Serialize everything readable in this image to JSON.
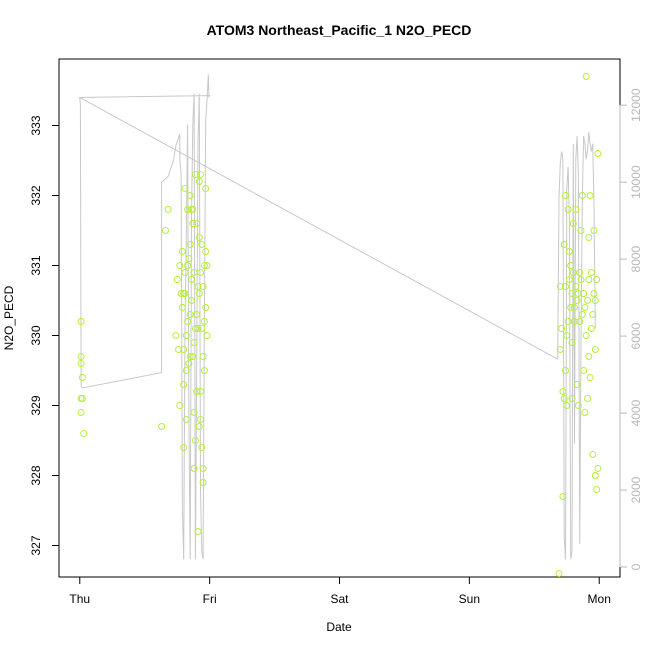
{
  "chart_data": {
    "type": "scatter",
    "title": "ATOM3 Northeast_Pacific_1 N2O_PECD",
    "xlabel": "Date",
    "ylabel": "N2O_PECD",
    "x_ticks": [
      {
        "value": 0,
        "label": "Thu"
      },
      {
        "value": 1,
        "label": "Fri"
      },
      {
        "value": 2,
        "label": "Sat"
      },
      {
        "value": 3,
        "label": "Sun"
      },
      {
        "value": 4,
        "label": "Mon"
      }
    ],
    "y_ticks": [
      "327",
      "328",
      "329",
      "330",
      "331",
      "332",
      "333"
    ],
    "y_right_ticks": [
      "0",
      "2000",
      "4000",
      "6000",
      "8000",
      "10000",
      "12000"
    ],
    "xlim": [
      -0.16,
      4.16
    ],
    "ylim": [
      326.55,
      333.95
    ],
    "y_right_lim": [
      -260,
      13200
    ],
    "colors": {
      "points": "#b6f03c",
      "altitude_line": "#c8c8c8",
      "right_axis": "#b8b8b8"
    },
    "grid": false,
    "series": [
      {
        "type": "scatter",
        "points": [
          [
            0.01,
            330.2
          ],
          [
            0.01,
            329.7
          ],
          [
            0.01,
            329.6
          ],
          [
            0.02,
            329.4
          ],
          [
            0.01,
            329.1
          ],
          [
            0.02,
            329.1
          ],
          [
            0.01,
            328.9
          ],
          [
            0.03,
            328.6
          ],
          [
            0.63,
            328.7
          ],
          [
            0.66,
            331.5
          ],
          [
            0.68,
            331.8
          ],
          [
            0.74,
            330.0
          ],
          [
            0.75,
            330.8
          ],
          [
            0.76,
            329.8
          ],
          [
            0.77,
            331.0
          ],
          [
            0.77,
            329.0
          ],
          [
            0.78,
            330.6
          ],
          [
            0.79,
            331.2
          ],
          [
            0.79,
            330.4
          ],
          [
            0.8,
            329.8
          ],
          [
            0.8,
            329.3
          ],
          [
            0.8,
            328.4
          ],
          [
            0.81,
            332.1
          ],
          [
            0.81,
            330.9
          ],
          [
            0.81,
            330.6
          ],
          [
            0.82,
            330.0
          ],
          [
            0.82,
            329.5
          ],
          [
            0.82,
            328.8
          ],
          [
            0.83,
            331.0
          ],
          [
            0.83,
            331.8
          ],
          [
            0.83,
            330.2
          ],
          [
            0.84,
            331.1
          ],
          [
            0.84,
            329.6
          ],
          [
            0.85,
            331.3
          ],
          [
            0.85,
            332.0
          ],
          [
            0.85,
            329.7
          ],
          [
            0.86,
            330.8
          ],
          [
            0.86,
            331.8
          ],
          [
            0.86,
            330.5
          ],
          [
            0.87,
            331.6
          ],
          [
            0.87,
            331.8
          ],
          [
            0.87,
            329.7
          ],
          [
            0.88,
            330.9
          ],
          [
            0.88,
            328.9
          ],
          [
            0.88,
            328.1
          ],
          [
            0.89,
            332.3
          ],
          [
            0.89,
            330.1
          ],
          [
            0.89,
            328.5
          ],
          [
            0.9,
            331.6
          ],
          [
            0.9,
            330.3
          ],
          [
            0.9,
            329.2
          ],
          [
            0.91,
            330.7
          ],
          [
            0.91,
            330.1
          ],
          [
            0.91,
            327.2
          ],
          [
            0.92,
            332.2
          ],
          [
            0.92,
            331.4
          ],
          [
            0.92,
            330.6
          ],
          [
            0.93,
            332.3
          ],
          [
            0.93,
            330.9
          ],
          [
            0.93,
            329.2
          ],
          [
            0.93,
            328.8
          ],
          [
            0.94,
            331.3
          ],
          [
            0.94,
            330.1
          ],
          [
            0.94,
            328.4
          ],
          [
            0.95,
            330.7
          ],
          [
            0.95,
            329.7
          ],
          [
            0.95,
            328.1
          ],
          [
            0.95,
            327.9
          ],
          [
            0.96,
            331.0
          ],
          [
            0.96,
            330.2
          ],
          [
            0.96,
            329.5
          ],
          [
            0.97,
            331.2
          ],
          [
            0.97,
            330.4
          ],
          [
            0.98,
            330.0
          ],
          [
            0.98,
            331.0
          ],
          [
            0.97,
            332.1
          ],
          [
            0.92,
            328.7
          ],
          [
            0.85,
            330.3
          ],
          [
            0.8,
            330.6
          ],
          [
            0.88,
            329.9
          ],
          [
            3.69,
            326.6
          ],
          [
            3.7,
            329.8
          ],
          [
            3.7,
            330.7
          ],
          [
            3.71,
            330.1
          ],
          [
            3.72,
            327.7
          ],
          [
            3.72,
            329.2
          ],
          [
            3.73,
            329.1
          ],
          [
            3.73,
            331.3
          ],
          [
            3.74,
            330.7
          ],
          [
            3.74,
            329.5
          ],
          [
            3.74,
            332.0
          ],
          [
            3.75,
            330.0
          ],
          [
            3.75,
            329.0
          ],
          [
            3.76,
            331.8
          ],
          [
            3.76,
            330.2
          ],
          [
            3.77,
            330.8
          ],
          [
            3.78,
            330.4
          ],
          [
            3.78,
            331.0
          ],
          [
            3.79,
            329.1
          ],
          [
            3.79,
            330.6
          ],
          [
            3.8,
            330.9
          ],
          [
            3.8,
            331.6
          ],
          [
            3.81,
            330.4
          ],
          [
            3.81,
            330.2
          ],
          [
            3.82,
            331.8
          ],
          [
            3.82,
            330.7
          ],
          [
            3.83,
            329.3
          ],
          [
            3.83,
            330.5
          ],
          [
            3.84,
            330.6
          ],
          [
            3.84,
            329.0
          ],
          [
            3.85,
            330.2
          ],
          [
            3.85,
            330.9
          ],
          [
            3.86,
            330.8
          ],
          [
            3.86,
            331.5
          ],
          [
            3.87,
            330.3
          ],
          [
            3.87,
            332.0
          ],
          [
            3.88,
            330.6
          ],
          [
            3.88,
            329.5
          ],
          [
            3.89,
            330.4
          ],
          [
            3.89,
            328.9
          ],
          [
            3.9,
            333.7
          ],
          [
            3.9,
            330.0
          ],
          [
            3.91,
            330.5
          ],
          [
            3.91,
            329.1
          ],
          [
            3.92,
            331.4
          ],
          [
            3.92,
            330.8
          ],
          [
            3.93,
            329.4
          ],
          [
            3.93,
            332.0
          ],
          [
            3.94,
            330.9
          ],
          [
            3.94,
            330.1
          ],
          [
            3.95,
            330.3
          ],
          [
            3.95,
            328.3
          ],
          [
            3.96,
            330.6
          ],
          [
            3.96,
            331.5
          ],
          [
            3.97,
            330.5
          ],
          [
            3.97,
            328.0
          ],
          [
            3.98,
            330.8
          ],
          [
            3.98,
            327.8
          ],
          [
            3.99,
            332.6
          ],
          [
            3.99,
            328.1
          ],
          [
            3.97,
            329.8
          ],
          [
            3.92,
            329.7
          ],
          [
            3.79,
            329.9
          ],
          [
            3.77,
            331.2
          ]
        ]
      },
      {
        "type": "line",
        "axis": "right",
        "points": [
          [
            0.0,
            12200
          ],
          [
            0.005,
            12000
          ],
          [
            0.01,
            4700
          ],
          [
            0.02,
            4650
          ],
          [
            0.63,
            5050
          ],
          [
            0.63,
            5050
          ],
          [
            0.63,
            10000
          ],
          [
            0.68,
            10150
          ],
          [
            0.72,
            10550
          ],
          [
            0.74,
            10950
          ],
          [
            0.77,
            11250
          ],
          [
            0.77,
            10600
          ],
          [
            0.78,
            10200
          ],
          [
            0.79,
            1500
          ],
          [
            0.8,
            200
          ],
          [
            0.81,
            6200
          ],
          [
            0.82,
            8600
          ],
          [
            0.83,
            11500
          ],
          [
            0.84,
            3800
          ],
          [
            0.85,
            200
          ],
          [
            0.86,
            9100
          ],
          [
            0.87,
            11500
          ],
          [
            0.88,
            12300
          ],
          [
            0.89,
            200
          ],
          [
            0.9,
            5200
          ],
          [
            0.91,
            11000
          ],
          [
            0.92,
            12300
          ],
          [
            0.93,
            2000
          ],
          [
            0.94,
            400
          ],
          [
            0.95,
            200
          ],
          [
            0.96,
            6500
          ],
          [
            0.97,
            11600
          ],
          [
            0.98,
            12100
          ],
          [
            0.99,
            12800
          ],
          [
            0.995,
            12200
          ],
          [
            1.0,
            12250
          ],
          [
            0.0,
            12200
          ],
          [
            3.68,
            5400
          ],
          [
            3.69,
            9600
          ],
          [
            3.7,
            10500
          ],
          [
            3.71,
            10800
          ],
          [
            3.72,
            10600
          ],
          [
            3.73,
            800
          ],
          [
            3.74,
            200
          ],
          [
            3.75,
            9800
          ],
          [
            3.76,
            10400
          ],
          [
            3.77,
            9000
          ],
          [
            3.78,
            200
          ],
          [
            3.79,
            400
          ],
          [
            3.8,
            11000
          ],
          [
            3.81,
            3200
          ],
          [
            3.82,
            10600
          ],
          [
            3.83,
            11200
          ],
          [
            3.84,
            10200
          ],
          [
            3.85,
            600
          ],
          [
            3.86,
            5800
          ],
          [
            3.87,
            9500
          ],
          [
            3.88,
            11200
          ],
          [
            3.89,
            11000
          ],
          [
            3.9,
            10600
          ],
          [
            3.91,
            10800
          ],
          [
            3.92,
            11300
          ],
          [
            3.93,
            11000
          ],
          [
            3.94,
            10800
          ],
          [
            3.95,
            11000
          ],
          [
            3.96,
            9400
          ],
          [
            3.97,
            6200
          ]
        ]
      }
    ]
  }
}
